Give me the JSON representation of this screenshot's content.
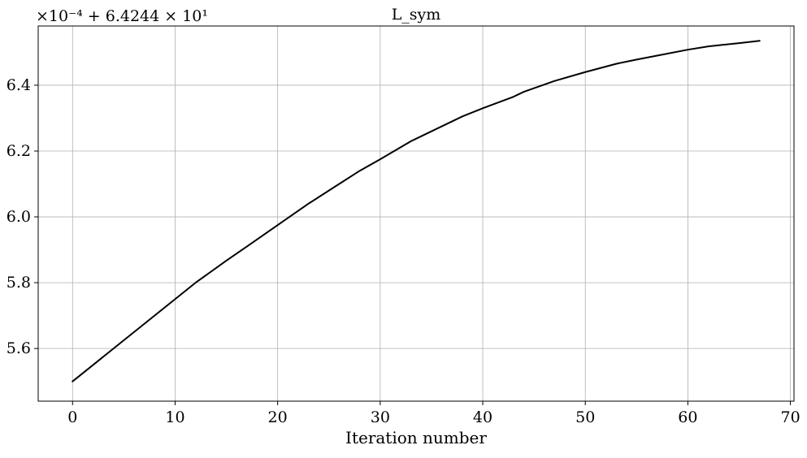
{
  "chart_data": {
    "type": "line",
    "title": "L_sym",
    "xlabel": "Iteration number",
    "ylabel": "",
    "y_offset_text": "×10⁻⁴ + 6.4244 × 10¹",
    "xlim": [
      -3.35,
      70.35
    ],
    "ylim": [
      5.44,
      6.58
    ],
    "grid": true,
    "x_ticks": [
      0,
      10,
      20,
      30,
      40,
      50,
      60,
      70
    ],
    "x_tick_labels": [
      "0",
      "10",
      "20",
      "30",
      "40",
      "50",
      "60",
      "70"
    ],
    "y_ticks": [
      5.6,
      5.8,
      6.0,
      6.2,
      6.4
    ],
    "y_tick_labels": [
      "5.6",
      "5.8",
      "6.0",
      "6.2",
      "6.4"
    ],
    "series": [
      {
        "color": "#000000",
        "x": [
          0,
          2,
          5,
          8,
          10,
          12,
          15,
          17,
          20,
          23,
          25,
          28,
          30,
          33,
          35,
          38,
          40,
          43,
          44,
          47,
          50,
          53,
          55,
          57,
          60,
          62,
          65,
          67
        ],
        "y": [
          5.5,
          5.55,
          5.625,
          5.7,
          5.75,
          5.8,
          5.867,
          5.91,
          5.975,
          6.04,
          6.08,
          6.14,
          6.175,
          6.23,
          6.26,
          6.305,
          6.33,
          6.365,
          6.38,
          6.413,
          6.44,
          6.465,
          6.478,
          6.49,
          6.508,
          6.518,
          6.528,
          6.535
        ]
      }
    ]
  }
}
